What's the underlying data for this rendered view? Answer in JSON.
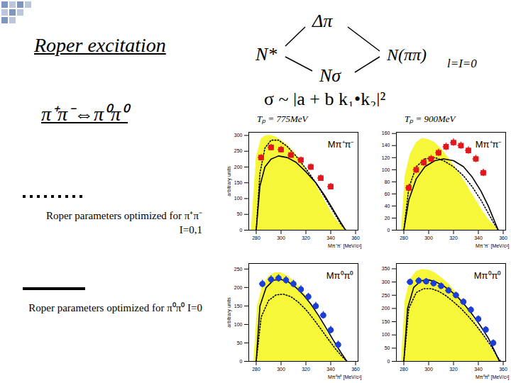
{
  "slide": {
    "title": "Roper excitation",
    "subtitle": "π⁺π⁻⇔π⁰π⁰",
    "diagram": {
      "source": "N*",
      "upper": "Δπ",
      "lower": "Nσ",
      "target": "N(ππ)",
      "target_sub": "l=I=0",
      "formula": "σ ~ |a + b k₁•k₂|²"
    }
  },
  "chart_data": [
    {
      "type": "line",
      "title": "Tₚ = 775MeV",
      "annotation": "Mπ⁺π⁻",
      "x_label": "Mπ⁺π⁻ [MeV/c²]",
      "y_label": "arbitrary units",
      "xlim": [
        274,
        362
      ],
      "xticks": [
        280,
        300,
        320,
        340,
        360
      ],
      "ylim": [
        0,
        310
      ],
      "yticks": [
        0,
        50,
        100,
        150,
        200,
        250,
        300
      ],
      "grid": false,
      "series": [
        {
          "type": "area",
          "color": "#f7f73a",
          "x": [
            276,
            280,
            284,
            288,
            292,
            296,
            300,
            305,
            310,
            315,
            320,
            325,
            330,
            335,
            340,
            345,
            350,
            353
          ],
          "values": [
            0,
            230,
            290,
            300,
            300,
            295,
            285,
            270,
            250,
            225,
            195,
            165,
            130,
            95,
            60,
            30,
            10,
            0
          ]
        },
        {
          "type": "line",
          "name": "Roper parameters optimized for π⁺π⁻ I=0,1",
          "color": "#000000",
          "line_style": "dotted",
          "x": [
            280,
            283,
            287,
            292,
            298,
            305,
            312,
            320,
            328,
            335,
            342,
            348,
            352
          ],
          "values": [
            0,
            180,
            260,
            285,
            285,
            265,
            235,
            195,
            150,
            105,
            60,
            20,
            0
          ]
        },
        {
          "type": "line",
          "name": "Roper parameters optimized for π⁰π⁰ I=0",
          "color": "#000000",
          "line_style": "solid",
          "x": [
            280,
            283,
            287,
            292,
            298,
            305,
            312,
            320,
            328,
            335,
            342,
            348,
            352
          ],
          "values": [
            0,
            140,
            200,
            225,
            235,
            230,
            215,
            185,
            150,
            110,
            65,
            25,
            0
          ]
        },
        {
          "type": "scatter",
          "color": "#e3161b",
          "marker": "square",
          "x": [
            284,
            292,
            300,
            308,
            316,
            324,
            332,
            340
          ],
          "values": [
            230,
            262,
            255,
            238,
            222,
            200,
            165,
            138
          ],
          "errors": [
            10,
            10,
            10,
            10,
            10,
            10,
            10,
            10
          ],
          "x_errors": [
            2.5,
            2.5,
            2.5,
            2.5,
            2.5,
            2.5,
            2.5,
            2.5
          ]
        }
      ]
    },
    {
      "type": "line",
      "title": "Tₚ = 900MeV",
      "annotation": "Mπ⁺π⁻",
      "x_label": "Mπ⁺π⁻ [MeV/c²]",
      "xlim": [
        274,
        362
      ],
      "xticks": [
        280,
        300,
        320,
        340,
        360
      ],
      "ylim": [
        0,
        162
      ],
      "yticks": [
        0,
        20,
        40,
        60,
        80,
        100,
        120,
        140,
        160
      ],
      "grid": false,
      "series": [
        {
          "type": "area",
          "color": "#f7f73a",
          "x": [
            278,
            281,
            285,
            290,
            295,
            300,
            305,
            310,
            315,
            320,
            325,
            330,
            335,
            340,
            345,
            350,
            355,
            357
          ],
          "values": [
            0,
            90,
            125,
            145,
            152,
            150,
            145,
            135,
            122,
            108,
            93,
            77,
            60,
            43,
            27,
            13,
            3,
            0
          ]
        },
        {
          "type": "line",
          "name": "Roper parameters optimized for π⁺π⁻ I=0,1",
          "color": "#000000",
          "line_style": "dotted",
          "x": [
            280,
            284,
            290,
            297,
            305,
            312,
            320,
            328,
            335,
            342,
            348,
            353,
            356
          ],
          "values": [
            0,
            70,
            105,
            118,
            120,
            115,
            105,
            90,
            72,
            50,
            28,
            10,
            0
          ]
        },
        {
          "type": "line",
          "name": "Roper parameters optimized for π⁰π⁰ I=0",
          "color": "#000000",
          "line_style": "solid",
          "x": [
            280,
            284,
            290,
            297,
            305,
            312,
            320,
            328,
            335,
            342,
            348,
            353,
            356
          ],
          "values": [
            0,
            50,
            85,
            105,
            115,
            118,
            115,
            105,
            88,
            65,
            40,
            15,
            0
          ]
        },
        {
          "type": "scatter",
          "color": "#e3161b",
          "marker": "square",
          "x": [
            284,
            290,
            296,
            302,
            308,
            314,
            320,
            326,
            332,
            338,
            344
          ],
          "values": [
            70,
            100,
            112,
            118,
            128,
            138,
            145,
            140,
            132,
            118,
            95
          ],
          "errors": [
            6,
            6,
            6,
            6,
            6,
            6,
            6,
            6,
            6,
            6,
            6
          ],
          "x_errors": [
            2.5,
            2.5,
            2.5,
            2.5,
            2.5,
            2.5,
            2.5,
            2.5,
            2.5,
            2.5,
            2.5
          ]
        }
      ]
    },
    {
      "type": "line",
      "annotation": "Mπ⁰π⁰",
      "x_label": "Mπ⁰π⁰ [MeV/c²]",
      "y_label": "arbitrary units",
      "xlim": [
        274,
        362
      ],
      "xticks": [
        280,
        300,
        320,
        340,
        360
      ],
      "ylim": [
        0,
        265
      ],
      "yticks": [
        0,
        50,
        100,
        150,
        200,
        250
      ],
      "grid": false,
      "series": [
        {
          "type": "area",
          "color": "#f7f73a",
          "x": [
            278,
            281,
            285,
            290,
            295,
            300,
            305,
            310,
            315,
            320,
            325,
            330,
            335,
            340,
            345,
            350,
            354
          ],
          "values": [
            0,
            150,
            205,
            230,
            240,
            240,
            232,
            218,
            200,
            178,
            152,
            122,
            92,
            62,
            35,
            12,
            0
          ]
        },
        {
          "type": "line",
          "name": "Roper parameters optimized for π⁺π⁻ I=0,1",
          "color": "#000000",
          "line_style": "dotted",
          "x": [
            280,
            284,
            290,
            296,
            302,
            308,
            314,
            320,
            326,
            332,
            338,
            344,
            350,
            353
          ],
          "values": [
            0,
            120,
            165,
            180,
            182,
            175,
            160,
            140,
            115,
            88,
            60,
            33,
            10,
            0
          ]
        },
        {
          "type": "line",
          "name": "Roper parameters optimized for π⁰π⁰ I=0",
          "color": "#000000",
          "line_style": "solid",
          "x": [
            280,
            283,
            288,
            294,
            300,
            306,
            312,
            318,
            324,
            330,
            336,
            342,
            348,
            353
          ],
          "values": [
            0,
            150,
            200,
            220,
            222,
            215,
            200,
            180,
            155,
            125,
            92,
            58,
            25,
            0
          ]
        },
        {
          "type": "scatter",
          "color": "#1a3ed6",
          "marker": "circle",
          "x": [
            285,
            292,
            298,
            304,
            310,
            316,
            322,
            328,
            334,
            340,
            346
          ],
          "values": [
            210,
            222,
            225,
            220,
            210,
            195,
            175,
            150,
            125,
            85,
            45
          ],
          "errors": [
            10,
            10,
            10,
            10,
            10,
            10,
            10,
            10,
            10,
            10,
            10
          ],
          "x_errors": [
            2.5,
            2.5,
            2.5,
            2.5,
            2.5,
            2.5,
            2.5,
            2.5,
            2.5,
            2.5,
            2.5
          ]
        }
      ]
    },
    {
      "type": "line",
      "annotation": "Mπ⁰π⁰",
      "x_label": "Mπ⁰π⁰ [MeV/c²]",
      "xlim": [
        274,
        362
      ],
      "xticks": [
        280,
        300,
        320,
        340,
        360
      ],
      "ylim": [
        0,
        370
      ],
      "yticks": [
        0,
        50,
        100,
        150,
        200,
        250,
        300,
        350
      ],
      "grid": false,
      "series": [
        {
          "type": "area",
          "color": "#f7f73a",
          "x": [
            278,
            281,
            285,
            290,
            295,
            300,
            305,
            310,
            315,
            320,
            325,
            330,
            335,
            340,
            345,
            350,
            355,
            358
          ],
          "values": [
            0,
            230,
            310,
            340,
            348,
            345,
            335,
            318,
            298,
            272,
            243,
            210,
            172,
            132,
            92,
            52,
            15,
            0
          ]
        },
        {
          "type": "line",
          "name": "Roper parameters optimized for π⁺π⁻ I=0,1",
          "color": "#000000",
          "line_style": "dotted",
          "x": [
            280,
            284,
            290,
            296,
            302,
            308,
            314,
            320,
            326,
            332,
            338,
            344,
            350,
            355,
            358
          ],
          "values": [
            0,
            200,
            260,
            275,
            275,
            265,
            248,
            225,
            200,
            170,
            137,
            100,
            60,
            20,
            0
          ]
        },
        {
          "type": "line",
          "name": "Roper parameters optimized for π⁰π⁰ I=0",
          "color": "#000000",
          "line_style": "solid",
          "x": [
            280,
            283,
            288,
            294,
            300,
            306,
            312,
            318,
            324,
            330,
            336,
            342,
            348,
            353,
            357
          ],
          "values": [
            0,
            200,
            280,
            305,
            308,
            300,
            285,
            265,
            240,
            208,
            172,
            132,
            88,
            40,
            0
          ]
        },
        {
          "type": "scatter",
          "color": "#1a3ed6",
          "marker": "circle",
          "x": [
            285,
            292,
            298,
            304,
            310,
            316,
            322,
            328,
            334,
            340,
            346,
            352
          ],
          "values": [
            300,
            305,
            302,
            295,
            285,
            268,
            250,
            225,
            195,
            160,
            120,
            70
          ],
          "errors": [
            12,
            12,
            12,
            12,
            12,
            12,
            12,
            12,
            12,
            12,
            12,
            12
          ],
          "x_errors": [
            2.5,
            2.5,
            2.5,
            2.5,
            2.5,
            2.5,
            2.5,
            2.5,
            2.5,
            2.5,
            2.5,
            2.5
          ]
        }
      ]
    }
  ]
}
